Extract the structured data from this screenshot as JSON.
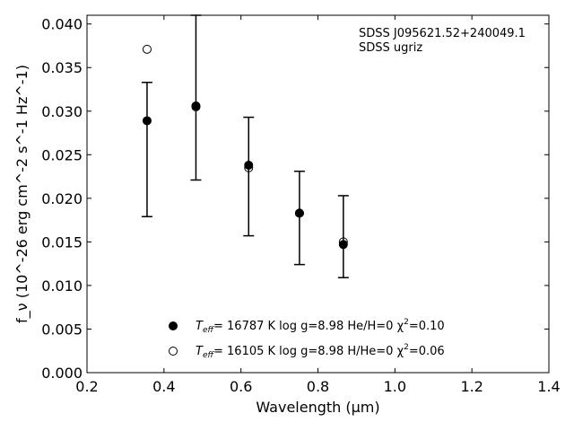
{
  "chart_data": {
    "type": "scatter",
    "xlabel": "Wavelength (μm)",
    "ylabel": "f_ν (10^-26 erg cm^-2 s^-1 Hz^-1)",
    "xlim": [
      0.2,
      1.4
    ],
    "ylim": [
      0.0,
      0.041
    ],
    "x_ticks": [
      "0.2",
      "0.4",
      "0.6",
      "0.8",
      "1.0",
      "1.2",
      "1.4"
    ],
    "x_tick_values": [
      0.2,
      0.4,
      0.6,
      0.8,
      1.0,
      1.2,
      1.4
    ],
    "y_ticks": [
      "0.000",
      "0.005",
      "0.010",
      "0.015",
      "0.020",
      "0.025",
      "0.030",
      "0.035",
      "0.040"
    ],
    "y_tick_values": [
      0.0,
      0.005,
      0.01,
      0.015,
      0.02,
      0.025,
      0.03,
      0.035,
      0.04
    ],
    "grid": false,
    "annotations": [
      "SDSS J095621.52+240049.1",
      "SDSS ugriz"
    ],
    "observed": {
      "x": [
        0.356,
        0.483,
        0.62,
        0.752,
        0.866
      ],
      "y": [
        0.0289,
        0.0306,
        0.0238,
        0.0183,
        0.0147
      ],
      "err_low": [
        0.0179,
        0.0221,
        0.0157,
        0.0124,
        0.0109
      ],
      "err_high": [
        0.0333,
        0.041,
        0.0293,
        0.0231,
        0.0203
      ]
    },
    "series": [
      {
        "marker": "filled-circle",
        "label_parts": [
          "T",
          "eff",
          "= 16787 K  log g=8.98  He/H=0  χ",
          "2",
          "=0.10"
        ],
        "x": [
          0.356,
          0.483,
          0.62,
          0.752,
          0.866
        ],
        "y": [
          0.0289,
          0.0306,
          0.0238,
          0.0183,
          0.0147
        ]
      },
      {
        "marker": "open-circle",
        "label_parts": [
          "T",
          "eff",
          "= 16105 K  log g=8.98  H/He=0  χ",
          "2",
          "=0.06"
        ],
        "x": [
          0.356,
          0.483,
          0.62,
          0.752,
          0.866
        ],
        "y": [
          0.0371,
          0.0305,
          0.0235,
          0.0183,
          0.015
        ]
      }
    ],
    "legend_placement": "lower-center"
  }
}
